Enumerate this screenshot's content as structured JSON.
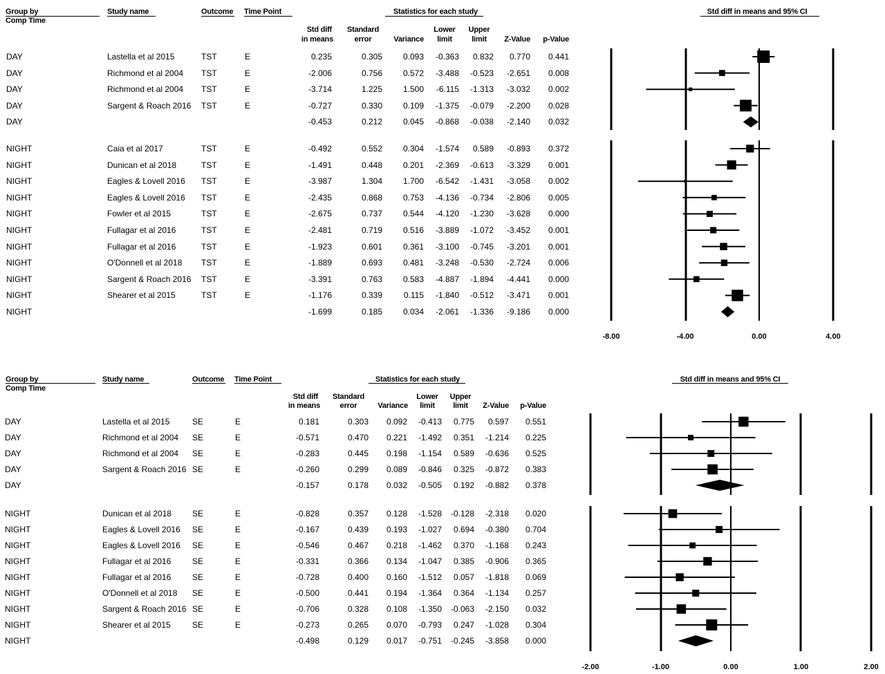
{
  "headers": {
    "group_by_line1": "Group by",
    "group_by_line2": "Comp Time",
    "study_name": "Study name",
    "outcome": "Outcome",
    "time_point": "Time Point",
    "stats_title": "Statistics for each study",
    "plot_title": "Std diff in means and 95% CI",
    "std_diff_line1": "Std diff",
    "std_diff_line2": "in means",
    "se_line1": "Standard",
    "se_line2": "error",
    "variance": "Variance",
    "lower_line1": "Lower",
    "lower_line2": "limit",
    "upper_line1": "Upper",
    "upper_line2": "limit",
    "z": "Z-Value",
    "p": "p-Value"
  },
  "chart_data": [
    {
      "type": "forest",
      "title": "Std diff in means and 95% CI",
      "xlim": [
        -8,
        4
      ],
      "tick_labels": [
        "-8.00",
        "-4.00",
        "0.00",
        "4.00"
      ],
      "rows": [
        {
          "group": "DAY",
          "study": "Lastella et al 2015",
          "outcome": "TST",
          "time": "E",
          "d": "0.235",
          "se": "0.305",
          "var": "0.093",
          "lo": "-0.363",
          "hi": "0.832",
          "z": "0.770",
          "p": "0.441",
          "summary": false,
          "gap": false
        },
        {
          "group": "DAY",
          "study": "Richmond et al 2004",
          "outcome": "TST",
          "time": "E",
          "d": "-2.006",
          "se": "0.756",
          "var": "0.572",
          "lo": "-3.488",
          "hi": "-0.523",
          "z": "-2.651",
          "p": "0.008",
          "summary": false,
          "gap": false
        },
        {
          "group": "DAY",
          "study": "Richmond et al 2004",
          "outcome": "TST",
          "time": "E",
          "d": "-3.714",
          "se": "1.225",
          "var": "1.500",
          "lo": "-6.115",
          "hi": "-1.313",
          "z": "-3.032",
          "p": "0.002",
          "summary": false,
          "gap": false
        },
        {
          "group": "DAY",
          "study": "Sargent & Roach 2016",
          "outcome": "TST",
          "time": "E",
          "d": "-0.727",
          "se": "0.330",
          "var": "0.109",
          "lo": "-1.375",
          "hi": "-0.079",
          "z": "-2.200",
          "p": "0.028",
          "summary": false,
          "gap": false
        },
        {
          "group": "DAY",
          "study": "",
          "outcome": "",
          "time": "",
          "d": "-0.453",
          "se": "0.212",
          "var": "0.045",
          "lo": "-0.868",
          "hi": "-0.038",
          "z": "-2.140",
          "p": "0.032",
          "summary": true,
          "gap": false
        },
        {
          "group": "NIGHT",
          "study": "Caia et al 2017",
          "outcome": "TST",
          "time": "E",
          "d": "-0.492",
          "se": "0.552",
          "var": "0.304",
          "lo": "-1.574",
          "hi": "0.589",
          "z": "-0.893",
          "p": "0.372",
          "summary": false,
          "gap": true
        },
        {
          "group": "NIGHT",
          "study": "Dunican et al 2018",
          "outcome": "TST",
          "time": "E",
          "d": "-1.491",
          "se": "0.448",
          "var": "0.201",
          "lo": "-2.369",
          "hi": "-0.613",
          "z": "-3.329",
          "p": "0.001",
          "summary": false,
          "gap": false
        },
        {
          "group": "NIGHT",
          "study": "Eagles & Lovell 2016",
          "outcome": "TST",
          "time": "E",
          "d": "-3.987",
          "se": "1.304",
          "var": "1.700",
          "lo": "-6.542",
          "hi": "-1.431",
          "z": "-3.058",
          "p": "0.002",
          "summary": false,
          "gap": false
        },
        {
          "group": "NIGHT",
          "study": "Eagles & Lovell 2016",
          "outcome": "TST",
          "time": "E",
          "d": "-2.435",
          "se": "0.868",
          "var": "0.753",
          "lo": "-4.136",
          "hi": "-0.734",
          "z": "-2.806",
          "p": "0.005",
          "summary": false,
          "gap": false
        },
        {
          "group": "NIGHT",
          "study": "Fowler et al 2015",
          "outcome": "TST",
          "time": "E",
          "d": "-2.675",
          "se": "0.737",
          "var": "0.544",
          "lo": "-4.120",
          "hi": "-1.230",
          "z": "-3.628",
          "p": "0.000",
          "summary": false,
          "gap": false
        },
        {
          "group": "NIGHT",
          "study": "Fullagar et al 2016",
          "outcome": "TST",
          "time": "E",
          "d": "-2.481",
          "se": "0.719",
          "var": "0.516",
          "lo": "-3.889",
          "hi": "-1.072",
          "z": "-3.452",
          "p": "0.001",
          "summary": false,
          "gap": false
        },
        {
          "group": "NIGHT",
          "study": "Fullagar et al 2016",
          "outcome": "TST",
          "time": "E",
          "d": "-1.923",
          "se": "0.601",
          "var": "0.361",
          "lo": "-3.100",
          "hi": "-0.745",
          "z": "-3.201",
          "p": "0.001",
          "summary": false,
          "gap": false
        },
        {
          "group": "NIGHT",
          "study": "O'Donnell et al 2018",
          "outcome": "TST",
          "time": "E",
          "d": "-1.889",
          "se": "0.693",
          "var": "0.481",
          "lo": "-3.248",
          "hi": "-0.530",
          "z": "-2.724",
          "p": "0.006",
          "summary": false,
          "gap": false
        },
        {
          "group": "NIGHT",
          "study": "Sargent & Roach 2016",
          "outcome": "TST",
          "time": "E",
          "d": "-3.391",
          "se": "0.763",
          "var": "0.583",
          "lo": "-4.887",
          "hi": "-1.894",
          "z": "-4.441",
          "p": "0.000",
          "summary": false,
          "gap": false
        },
        {
          "group": "NIGHT",
          "study": "Shearer et al 2015",
          "outcome": "TST",
          "time": "E",
          "d": "-1.176",
          "se": "0.339",
          "var": "0.115",
          "lo": "-1.840",
          "hi": "-0.512",
          "z": "-3.471",
          "p": "0.001",
          "summary": false,
          "gap": false
        },
        {
          "group": "NIGHT",
          "study": "",
          "outcome": "",
          "time": "",
          "d": "-1.699",
          "se": "0.185",
          "var": "0.034",
          "lo": "-2.061",
          "hi": "-1.336",
          "z": "-9.186",
          "p": "0.000",
          "summary": true,
          "gap": false
        }
      ]
    },
    {
      "type": "forest",
      "title": "Std diff in means and 95% CI",
      "xlim": [
        -2,
        2
      ],
      "tick_labels": [
        "-2.00",
        "-1.00",
        "0.00",
        "1.00",
        "2.00"
      ],
      "rows": [
        {
          "group": "DAY",
          "study": "Lastella et al 2015",
          "outcome": "SE",
          "time": "E",
          "d": "0.181",
          "se": "0.303",
          "var": "0.092",
          "lo": "-0.413",
          "hi": "0.775",
          "z": "0.597",
          "p": "0.551",
          "summary": false,
          "gap": false
        },
        {
          "group": "DAY",
          "study": "Richmond et al 2004",
          "outcome": "SE",
          "time": "E",
          "d": "-0.571",
          "se": "0.470",
          "var": "0.221",
          "lo": "-1.492",
          "hi": "0.351",
          "z": "-1.214",
          "p": "0.225",
          "summary": false,
          "gap": false
        },
        {
          "group": "DAY",
          "study": "Richmond et al 2004",
          "outcome": "SE",
          "time": "E",
          "d": "-0.283",
          "se": "0.445",
          "var": "0.198",
          "lo": "-1.154",
          "hi": "0.589",
          "z": "-0.636",
          "p": "0.525",
          "summary": false,
          "gap": false
        },
        {
          "group": "DAY",
          "study": "Sargent & Roach 2016",
          "outcome": "SE",
          "time": "E",
          "d": "-0.260",
          "se": "0.299",
          "var": "0.089",
          "lo": "-0.846",
          "hi": "0.325",
          "z": "-0.872",
          "p": "0.383",
          "summary": false,
          "gap": false
        },
        {
          "group": "DAY",
          "study": "",
          "outcome": "",
          "time": "",
          "d": "-0.157",
          "se": "0.178",
          "var": "0.032",
          "lo": "-0.505",
          "hi": "0.192",
          "z": "-0.882",
          "p": "0.378",
          "summary": true,
          "gap": false
        },
        {
          "group": "NIGHT",
          "study": "Dunican et al 2018",
          "outcome": "SE",
          "time": "E",
          "d": "-0.828",
          "se": "0.357",
          "var": "0.128",
          "lo": "-1.528",
          "hi": "-0.128",
          "z": "-2.318",
          "p": "0.020",
          "summary": false,
          "gap": true
        },
        {
          "group": "NIGHT",
          "study": "Eagles & Lovell 2016",
          "outcome": "SE",
          "time": "E",
          "d": "-0.167",
          "se": "0.439",
          "var": "0.193",
          "lo": "-1.027",
          "hi": "0.694",
          "z": "-0.380",
          "p": "0.704",
          "summary": false,
          "gap": false
        },
        {
          "group": "NIGHT",
          "study": "Eagles & Lovell 2016",
          "outcome": "SE",
          "time": "E",
          "d": "-0.546",
          "se": "0.467",
          "var": "0.218",
          "lo": "-1.462",
          "hi": "0.370",
          "z": "-1.168",
          "p": "0.243",
          "summary": false,
          "gap": false
        },
        {
          "group": "NIGHT",
          "study": "Fullagar et al 2016",
          "outcome": "SE",
          "time": "E",
          "d": "-0.331",
          "se": "0.366",
          "var": "0.134",
          "lo": "-1.047",
          "hi": "0.385",
          "z": "-0.906",
          "p": "0.365",
          "summary": false,
          "gap": false
        },
        {
          "group": "NIGHT",
          "study": "Fullagar et al 2016",
          "outcome": "SE",
          "time": "E",
          "d": "-0.728",
          "se": "0.400",
          "var": "0.160",
          "lo": "-1.512",
          "hi": "0.057",
          "z": "-1.818",
          "p": "0.069",
          "summary": false,
          "gap": false
        },
        {
          "group": "NIGHT",
          "study": "O'Donnell et al 2018",
          "outcome": "SE",
          "time": "E",
          "d": "-0.500",
          "se": "0.441",
          "var": "0.194",
          "lo": "-1.364",
          "hi": "0.364",
          "z": "-1.134",
          "p": "0.257",
          "summary": false,
          "gap": false
        },
        {
          "group": "NIGHT",
          "study": "Sargent & Roach 2016",
          "outcome": "SE",
          "time": "E",
          "d": "-0.706",
          "se": "0.328",
          "var": "0.108",
          "lo": "-1.350",
          "hi": "-0.063",
          "z": "-2.150",
          "p": "0.032",
          "summary": false,
          "gap": false
        },
        {
          "group": "NIGHT",
          "study": "Shearer et al 2015",
          "outcome": "SE",
          "time": "E",
          "d": "-0.273",
          "se": "0.265",
          "var": "0.070",
          "lo": "-0.793",
          "hi": "0.247",
          "z": "-1.028",
          "p": "0.304",
          "summary": false,
          "gap": false
        },
        {
          "group": "NIGHT",
          "study": "",
          "outcome": "",
          "time": "",
          "d": "-0.498",
          "se": "0.129",
          "var": "0.017",
          "lo": "-0.751",
          "hi": "-0.245",
          "z": "-3.858",
          "p": "0.000",
          "summary": true,
          "gap": false
        }
      ]
    }
  ]
}
